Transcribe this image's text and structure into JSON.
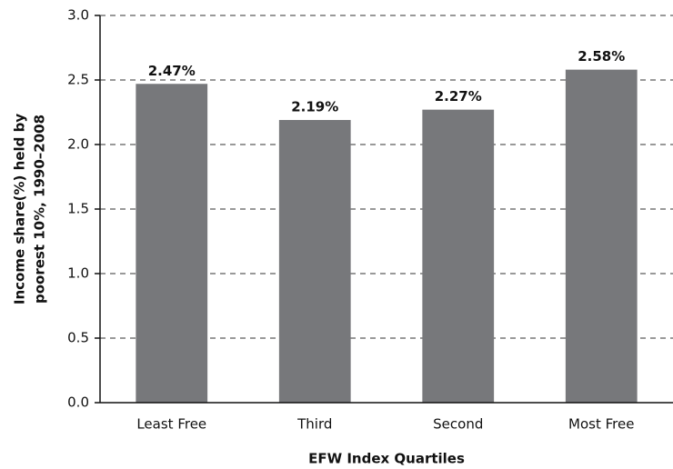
{
  "chart_data": {
    "type": "bar",
    "xlabel": "EFW Index Quartiles",
    "ylabel": [
      "Income share(%) held by",
      "poorest 10%, 1990–2008"
    ],
    "categories": [
      "Least Free",
      "Third",
      "Second",
      "Most Free"
    ],
    "values": [
      2.47,
      2.19,
      2.27,
      2.58
    ],
    "value_labels": [
      "2.47%",
      "2.19%",
      "2.27%",
      "2.58%"
    ],
    "color": "#77787b",
    "ylim": [
      0,
      3
    ],
    "yticks": [
      {
        "value": 0,
        "label": "0.0"
      },
      0.5,
      {
        "value": 1,
        "label": "1.0"
      },
      1.5,
      {
        "value": 2,
        "label": "2.0"
      },
      2.5,
      {
        "value": 3,
        "label": "3.0"
      }
    ],
    "grid": true
  }
}
